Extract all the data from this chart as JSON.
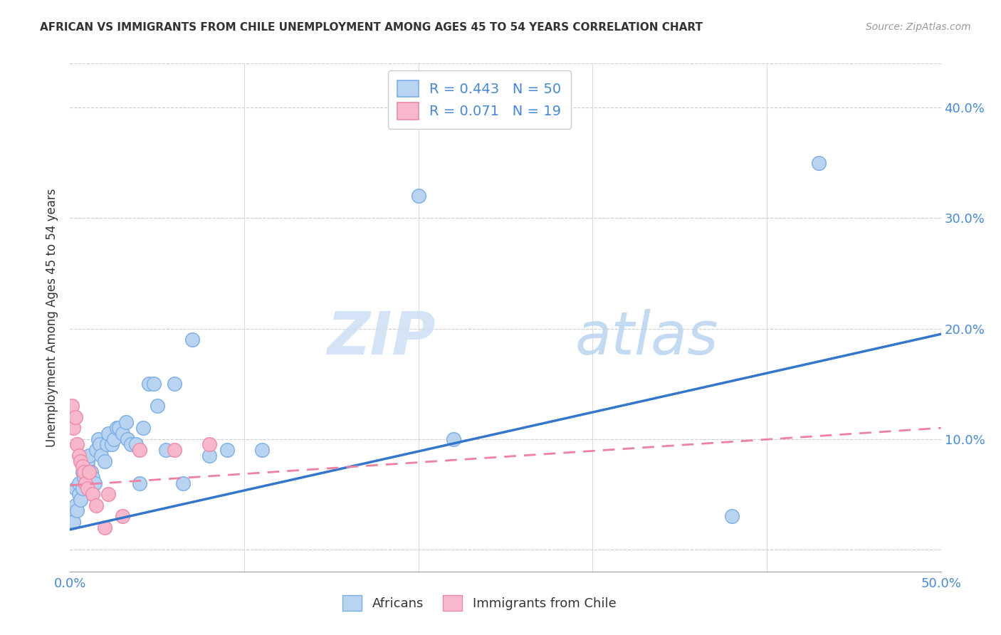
{
  "title": "AFRICAN VS IMMIGRANTS FROM CHILE UNEMPLOYMENT AMONG AGES 45 TO 54 YEARS CORRELATION CHART",
  "source": "Source: ZipAtlas.com",
  "ylabel": "Unemployment Among Ages 45 to 54 years",
  "xlim": [
    0.0,
    0.5
  ],
  "ylim": [
    -0.02,
    0.44
  ],
  "xticks": [
    0.0,
    0.1,
    0.2,
    0.3,
    0.4,
    0.5
  ],
  "yticks": [
    0.0,
    0.1,
    0.2,
    0.3,
    0.4
  ],
  "xticklabels": [
    "0.0%",
    "",
    "",
    "",
    "",
    "50.0%"
  ],
  "right_yticklabels": [
    "",
    "10.0%",
    "20.0%",
    "30.0%",
    "40.0%"
  ],
  "african_color": "#b8d4f0",
  "african_edge_color": "#7aaee8",
  "chile_color": "#f8b8cc",
  "chile_edge_color": "#f088a8",
  "african_R": 0.443,
  "african_N": 50,
  "chile_R": 0.071,
  "chile_N": 19,
  "legend_text_color": "#4488dd",
  "watermark_zip": "ZIP",
  "watermark_atlas": "atlas",
  "africans_x": [
    0.001,
    0.002,
    0.003,
    0.003,
    0.004,
    0.005,
    0.005,
    0.006,
    0.007,
    0.007,
    0.008,
    0.009,
    0.01,
    0.01,
    0.011,
    0.012,
    0.013,
    0.014,
    0.015,
    0.016,
    0.017,
    0.018,
    0.02,
    0.021,
    0.022,
    0.024,
    0.025,
    0.027,
    0.028,
    0.03,
    0.032,
    0.033,
    0.035,
    0.038,
    0.04,
    0.042,
    0.045,
    0.048,
    0.05,
    0.055,
    0.06,
    0.065,
    0.07,
    0.08,
    0.09,
    0.11,
    0.2,
    0.22,
    0.38,
    0.43
  ],
  "africans_y": [
    0.03,
    0.025,
    0.04,
    0.055,
    0.035,
    0.05,
    0.06,
    0.045,
    0.055,
    0.07,
    0.065,
    0.06,
    0.075,
    0.08,
    0.085,
    0.07,
    0.065,
    0.06,
    0.09,
    0.1,
    0.095,
    0.085,
    0.08,
    0.095,
    0.105,
    0.095,
    0.1,
    0.11,
    0.11,
    0.105,
    0.115,
    0.1,
    0.095,
    0.095,
    0.06,
    0.11,
    0.15,
    0.15,
    0.13,
    0.09,
    0.15,
    0.06,
    0.19,
    0.085,
    0.09,
    0.09,
    0.32,
    0.1,
    0.03,
    0.35
  ],
  "chile_x": [
    0.001,
    0.002,
    0.003,
    0.004,
    0.005,
    0.006,
    0.007,
    0.008,
    0.009,
    0.01,
    0.011,
    0.013,
    0.015,
    0.02,
    0.022,
    0.03,
    0.04,
    0.06,
    0.08
  ],
  "chile_y": [
    0.13,
    0.11,
    0.12,
    0.095,
    0.085,
    0.08,
    0.075,
    0.07,
    0.06,
    0.055,
    0.07,
    0.05,
    0.04,
    0.02,
    0.05,
    0.03,
    0.09,
    0.09,
    0.095
  ],
  "african_line_x": [
    0.0,
    0.5
  ],
  "african_line_y": [
    0.018,
    0.195
  ],
  "chile_line_x": [
    0.0,
    0.5
  ],
  "chile_line_y": [
    0.058,
    0.11
  ]
}
